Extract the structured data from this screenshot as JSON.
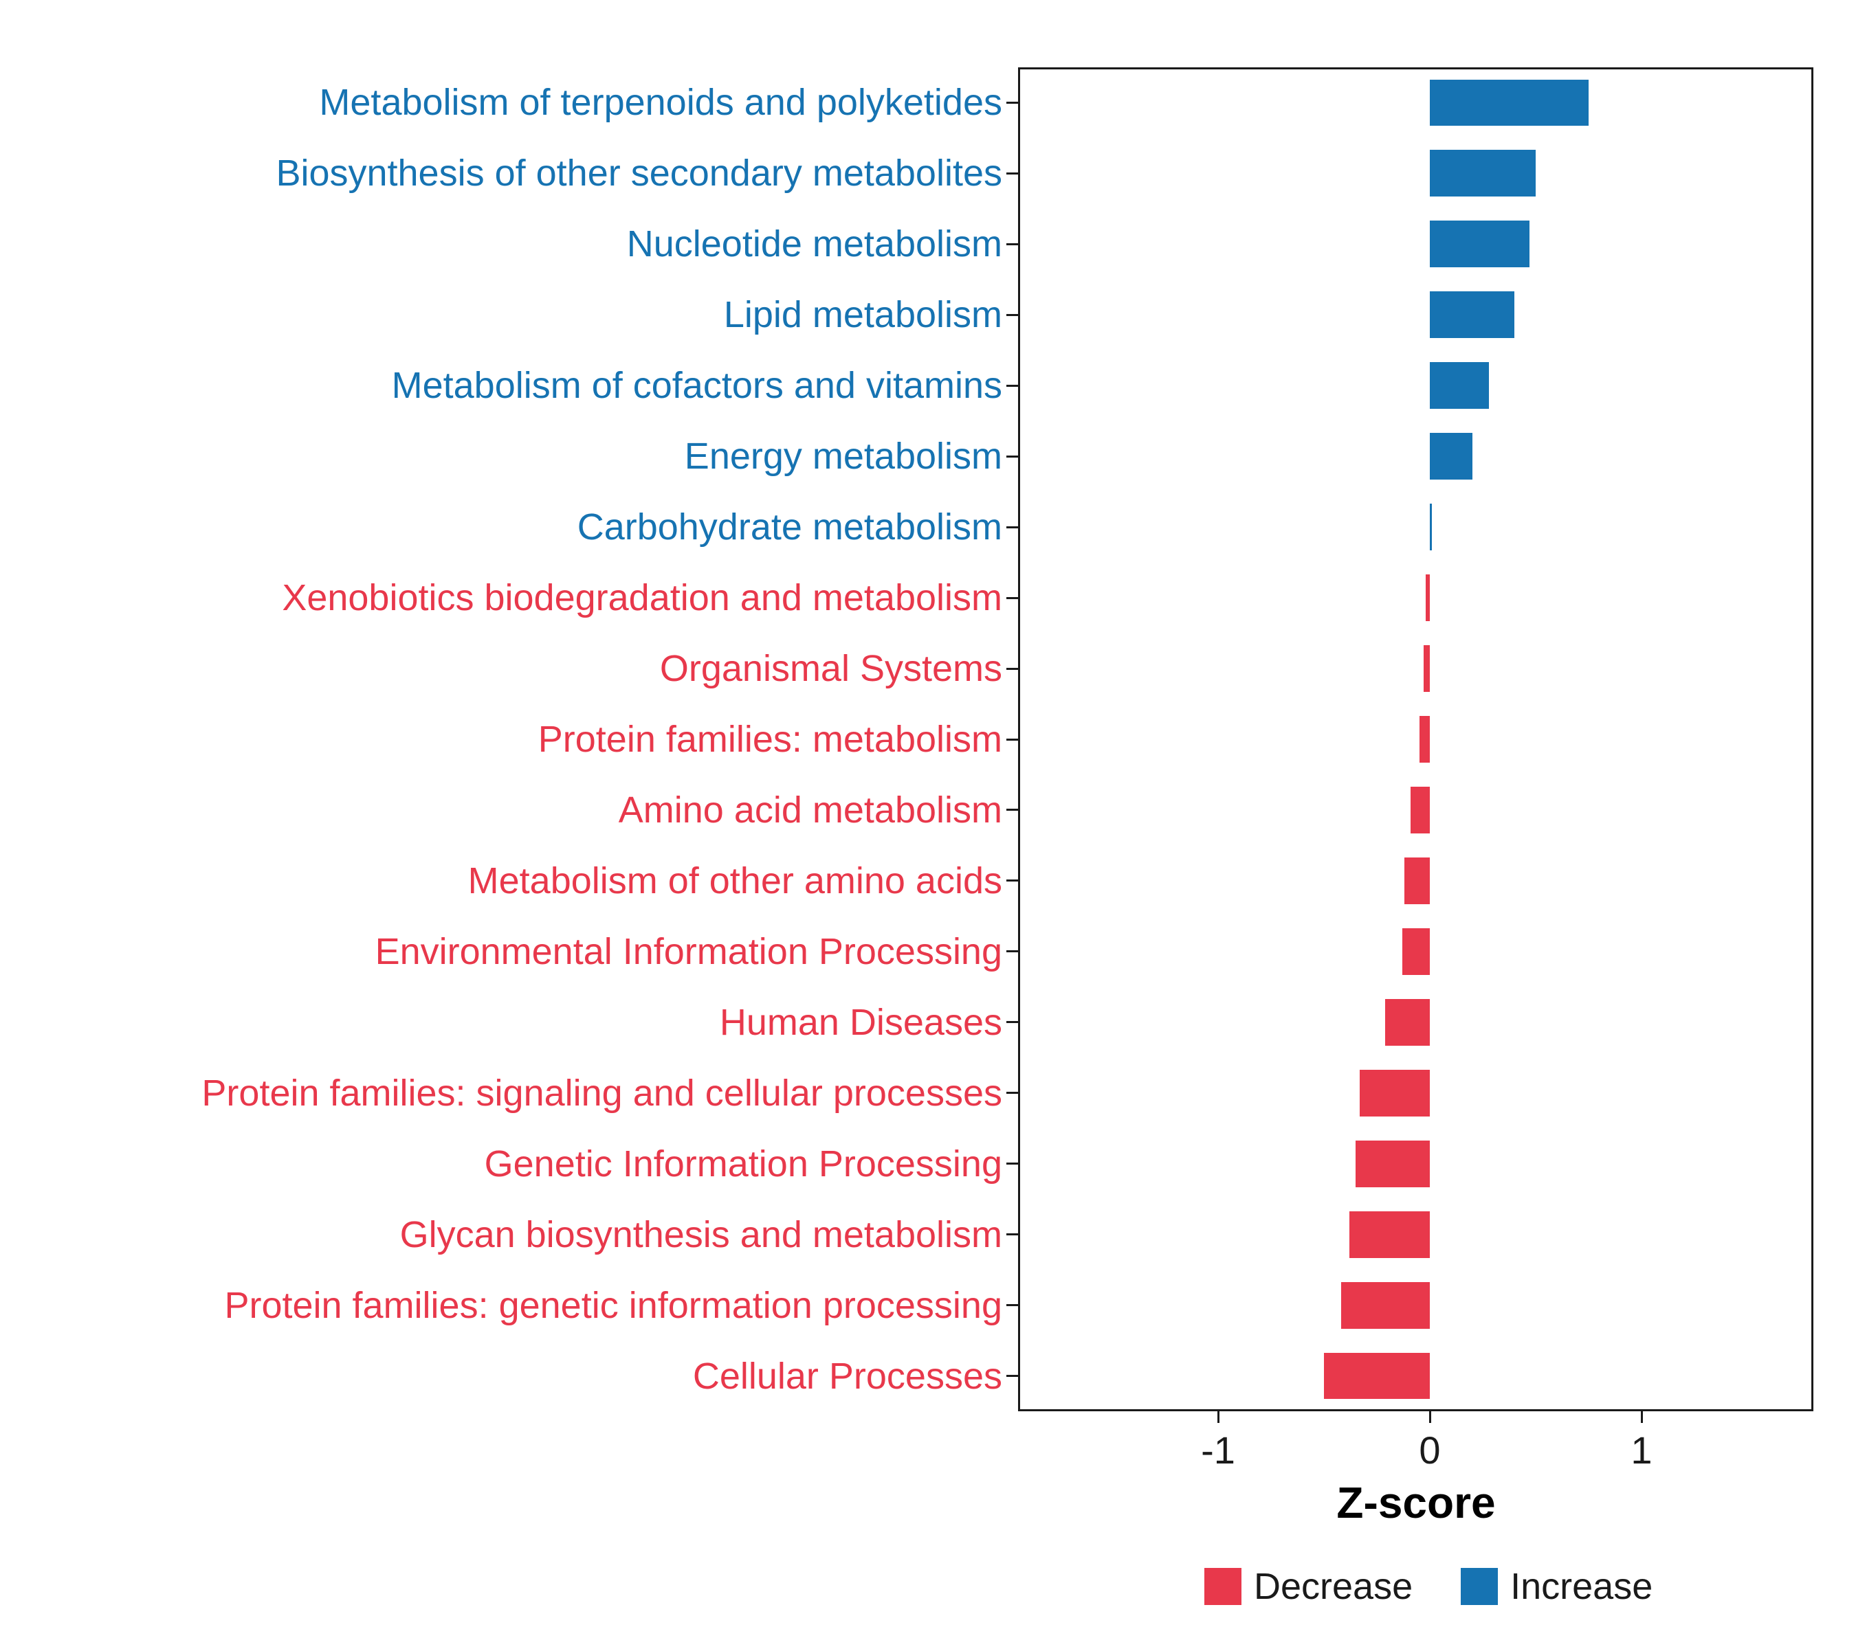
{
  "chart_data": {
    "type": "bar",
    "orientation": "horizontal",
    "title": "",
    "xlabel": "Z-score",
    "ylabel": "",
    "xlim": [
      -1.95,
      1.8
    ],
    "x_ticks": [
      -1,
      0,
      1
    ],
    "grid": false,
    "legend_position": "bottom-right",
    "categories": [
      "Metabolism of terpenoids and polyketides",
      "Biosynthesis of other secondary metabolites",
      "Nucleotide metabolism",
      "Lipid metabolism",
      "Metabolism of cofactors and vitamins",
      "Energy metabolism",
      "Carbohydrate metabolism",
      "Xenobiotics biodegradation and metabolism",
      "Organismal Systems",
      "Protein families: metabolism",
      "Amino acid metabolism",
      "Metabolism of other amino acids",
      "Environmental Information Processing",
      "Human Diseases",
      "Protein families: signaling and cellular processes",
      "Genetic Information Processing",
      "Glycan biosynthesis and metabolism",
      "Protein families: genetic information processing",
      "Cellular Processes"
    ],
    "values": [
      0.75,
      0.5,
      0.47,
      0.4,
      0.28,
      0.2,
      0.01,
      -0.02,
      -0.03,
      -0.05,
      -0.09,
      -0.12,
      -0.13,
      -0.21,
      -0.33,
      -0.35,
      -0.38,
      -0.42,
      -0.5
    ],
    "groups": [
      "Increase",
      "Increase",
      "Increase",
      "Increase",
      "Increase",
      "Increase",
      "Increase",
      "Decrease",
      "Decrease",
      "Decrease",
      "Decrease",
      "Decrease",
      "Decrease",
      "Decrease",
      "Decrease",
      "Decrease",
      "Decrease",
      "Decrease",
      "Decrease"
    ],
    "colors": {
      "Decrease": "#E8384B",
      "Increase": "#1673B2"
    },
    "legend": [
      {
        "label": "Decrease",
        "color": "#E8384B"
      },
      {
        "label": "Increase",
        "color": "#1673B2"
      }
    ]
  }
}
